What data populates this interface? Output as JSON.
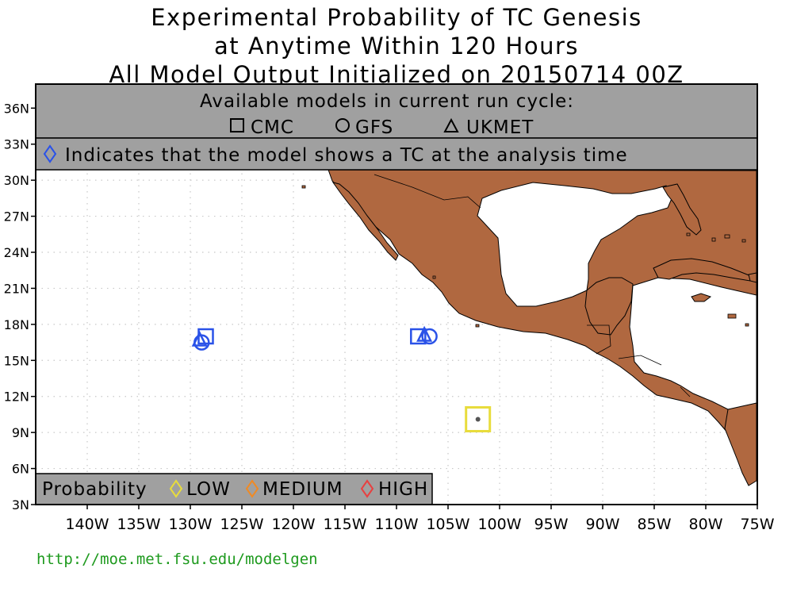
{
  "title": {
    "line1": "Experimental Probability of TC Genesis",
    "line2": "at Anytime Within 120 Hours",
    "line3": "All Model Output Initialized on 20150714 00Z"
  },
  "header_box": {
    "available_label": "Available models in current run cycle:",
    "models": [
      {
        "symbol": "square-icon",
        "name": "CMC"
      },
      {
        "symbol": "circle-icon",
        "name": "GFS"
      },
      {
        "symbol": "triangle-icon",
        "name": "UKMET"
      }
    ],
    "analysis_note": "Indicates that the model shows a TC at the analysis time"
  },
  "legend": {
    "label": "Probability",
    "items": [
      {
        "name": "LOW",
        "color": "#e8dc3c"
      },
      {
        "name": "MEDIUM",
        "color": "#f08a24"
      },
      {
        "name": "HIGH",
        "color": "#e84040"
      }
    ]
  },
  "axes": {
    "lon_range": [
      -145,
      -75
    ],
    "lat_range": [
      3,
      38
    ],
    "lon_ticks": [
      "140W",
      "135W",
      "130W",
      "125W",
      "120W",
      "115W",
      "110W",
      "105W",
      "100W",
      "95W",
      "90W",
      "85W",
      "80W",
      "75W"
    ],
    "lat_ticks": [
      "3N",
      "6N",
      "9N",
      "12N",
      "15N",
      "18N",
      "21N",
      "24N",
      "27N",
      "30N",
      "33N",
      "36N"
    ]
  },
  "colors": {
    "land": "#b06840",
    "analysis_marker": "#2a52e8",
    "panel": "#a0a0a0",
    "grid": "#c8c8c8",
    "url": "#1e9a1e"
  },
  "markers": [
    {
      "model": "CMC",
      "shape": "square",
      "lon": -128.5,
      "lat": 17.0,
      "color": "#2a52e8"
    },
    {
      "model": "GFS",
      "shape": "circle",
      "lon": -128.9,
      "lat": 16.5,
      "color": "#2a52e8"
    },
    {
      "model": "UKMET",
      "shape": "triangle",
      "lon": -129.1,
      "lat": 16.7,
      "color": "#2a52e8"
    },
    {
      "model": "CMC",
      "shape": "square",
      "lon": -107.9,
      "lat": 17.0,
      "color": "#2a52e8"
    },
    {
      "model": "GFS",
      "shape": "circle",
      "lon": -106.8,
      "lat": 17.0,
      "color": "#2a52e8"
    },
    {
      "model": "UKMET",
      "shape": "triangle",
      "lon": -107.3,
      "lat": 17.1,
      "color": "#2a52e8"
    },
    {
      "model": "genesis",
      "shape": "square",
      "lon": -102.1,
      "lat": 10.1,
      "color": "#e8dc3c",
      "probability": "LOW"
    }
  ],
  "footer_url": "http://moe.met.fsu.edu/modelgen"
}
